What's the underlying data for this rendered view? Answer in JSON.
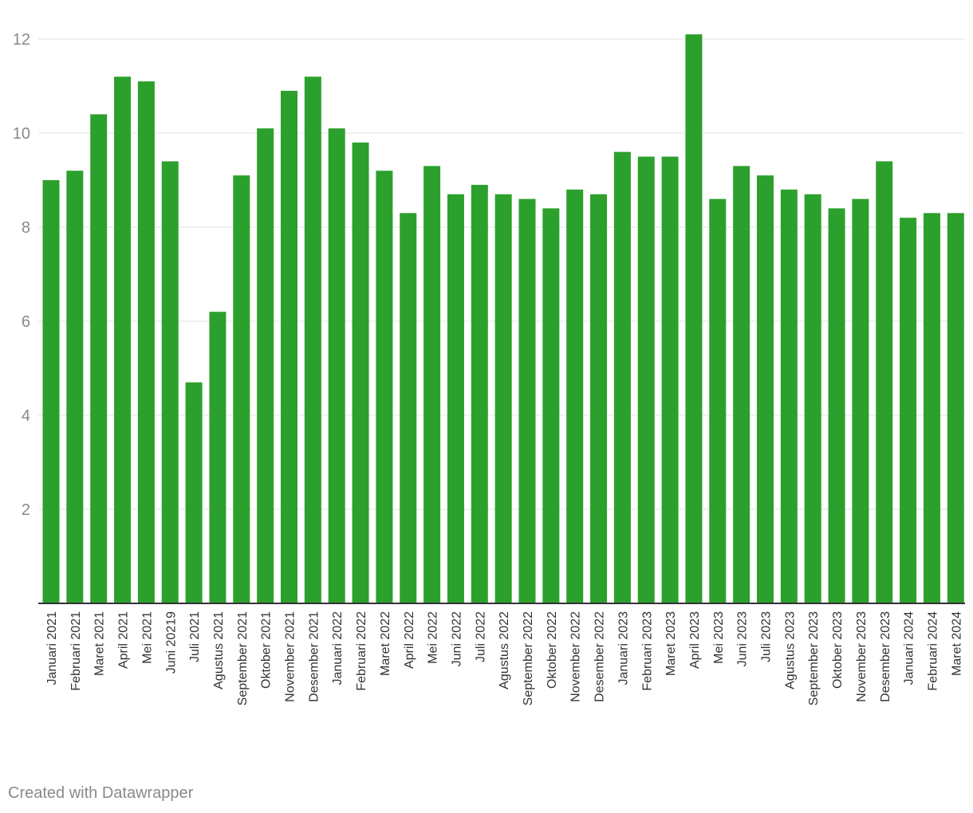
{
  "chart_data": {
    "type": "bar",
    "title": "",
    "xlabel": "",
    "ylabel": "",
    "ylim": [
      0,
      12
    ],
    "yticks": [
      2,
      4,
      6,
      8,
      10,
      12
    ],
    "grid": true,
    "bar_color": "#2ca02c",
    "categories": [
      "Januari 2021",
      "Februari 2021",
      "Maret 2021",
      "April 2021",
      "Mei 2021",
      "Juni 20219",
      "Juli 2021",
      "Agustus 2021",
      "September 2021",
      "Oktober 2021",
      "November 2021",
      "Desember 2021",
      "Januari 2022",
      "Februari 2022",
      "Maret 2022",
      "April 2022",
      "Mei 2022",
      "Juni 2022",
      "Juli 2022",
      "Agustus 2022",
      "September 2022",
      "Oktober 2022",
      "November 2022",
      "Desember 2022",
      "Januari 2023",
      "Februari 2023",
      "Maret 2023",
      "April 2023",
      "Mei 2023",
      "Juni 2023",
      "Juli 2023",
      "Agustus 2023",
      "September 2023",
      "Oktober 2023",
      "November 2023",
      "Desember 2023",
      "Januari 2024",
      "Februari 2024",
      "Maret 2024"
    ],
    "values": [
      9.0,
      9.2,
      10.4,
      11.2,
      11.1,
      9.4,
      4.7,
      6.2,
      9.1,
      10.1,
      10.9,
      11.2,
      10.1,
      9.8,
      9.2,
      8.3,
      9.3,
      8.7,
      8.9,
      8.7,
      8.6,
      8.4,
      8.8,
      8.7,
      9.6,
      9.5,
      9.5,
      12.1,
      8.6,
      9.3,
      9.1,
      8.8,
      8.7,
      8.4,
      8.6,
      9.4,
      8.2,
      8.3,
      8.3
    ]
  },
  "footer": {
    "credit": "Created with Datawrapper"
  }
}
